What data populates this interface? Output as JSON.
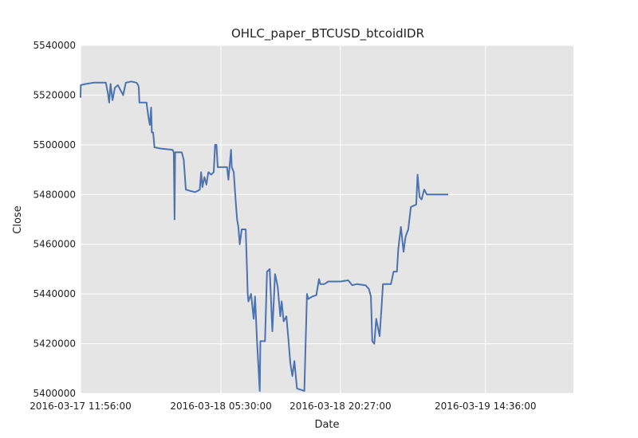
{
  "chart_data": {
    "type": "line",
    "title": "OHLC_paper_BTCUSD_btcoidIDR",
    "xlabel": "Date",
    "ylabel": "Close",
    "ylim": [
      5400000,
      5540000
    ],
    "yticks": [
      "5400000",
      "5420000",
      "5440000",
      "5460000",
      "5480000",
      "5500000",
      "5520000",
      "5540000"
    ],
    "xticks": [
      {
        "label": "2016-03-17 11:56:00",
        "x": 0
      },
      {
        "label": "2016-03-18 05:30:00",
        "x": 1054
      },
      {
        "label": "2016-03-18 20:27:00",
        "x": 1951
      },
      {
        "label": "2016-03-19 14:36:00",
        "x": 3040
      }
    ],
    "x_unit": "minutes since 2016-03-17 11:56:00",
    "xlim": [
      0,
      3700
    ],
    "grid": true,
    "background": "#e5e5e5",
    "line_color": "#4c72b0",
    "series": [
      {
        "name": "Close",
        "points": [
          [
            0,
            5519000
          ],
          [
            2,
            5524000
          ],
          [
            40,
            5524500
          ],
          [
            100,
            5525000
          ],
          [
            190,
            5525000
          ],
          [
            205,
            5521000
          ],
          [
            215,
            5517000
          ],
          [
            225,
            5524500
          ],
          [
            240,
            5518000
          ],
          [
            258,
            5523000
          ],
          [
            280,
            5524000
          ],
          [
            300,
            5522000
          ],
          [
            320,
            5520000
          ],
          [
            340,
            5525000
          ],
          [
            380,
            5525500
          ],
          [
            420,
            5525000
          ],
          [
            432,
            5524000
          ],
          [
            437,
            5523000
          ],
          [
            442,
            5517000
          ],
          [
            465,
            5517000
          ],
          [
            495,
            5517000
          ],
          [
            510,
            5511000
          ],
          [
            520,
            5508000
          ],
          [
            530,
            5515000
          ],
          [
            535,
            5505000
          ],
          [
            545,
            5505000
          ],
          [
            555,
            5499000
          ],
          [
            600,
            5498500
          ],
          [
            690,
            5498000
          ],
          [
            700,
            5497000
          ],
          [
            706,
            5470000
          ],
          [
            710,
            5497000
          ],
          [
            720,
            5497000
          ],
          [
            760,
            5497000
          ],
          [
            775,
            5494000
          ],
          [
            790,
            5482000
          ],
          [
            820,
            5481500
          ],
          [
            860,
            5481000
          ],
          [
            880,
            5481500
          ],
          [
            895,
            5482000
          ],
          [
            905,
            5489000
          ],
          [
            915,
            5483000
          ],
          [
            930,
            5487000
          ],
          [
            945,
            5484000
          ],
          [
            960,
            5489000
          ],
          [
            980,
            5488000
          ],
          [
            1000,
            5489000
          ],
          [
            1010,
            5500000
          ],
          [
            1020,
            5500000
          ],
          [
            1030,
            5491000
          ],
          [
            1100,
            5491000
          ],
          [
            1110,
            5486000
          ],
          [
            1130,
            5498000
          ],
          [
            1135,
            5491000
          ],
          [
            1150,
            5489000
          ],
          [
            1165,
            5477000
          ],
          [
            1175,
            5470000
          ],
          [
            1185,
            5467000
          ],
          [
            1195,
            5460000
          ],
          [
            1210,
            5466000
          ],
          [
            1240,
            5466000
          ],
          [
            1250,
            5449000
          ],
          [
            1255,
            5440000
          ],
          [
            1260,
            5437000
          ],
          [
            1280,
            5440000
          ],
          [
            1300,
            5430000
          ],
          [
            1310,
            5439000
          ],
          [
            1325,
            5421000
          ],
          [
            1345,
            5401000
          ],
          [
            1350,
            5421000
          ],
          [
            1385,
            5421000
          ],
          [
            1400,
            5449000
          ],
          [
            1420,
            5450000
          ],
          [
            1440,
            5425000
          ],
          [
            1460,
            5448000
          ],
          [
            1480,
            5443000
          ],
          [
            1500,
            5431000
          ],
          [
            1510,
            5437000
          ],
          [
            1525,
            5429000
          ],
          [
            1545,
            5431000
          ],
          [
            1560,
            5422000
          ],
          [
            1575,
            5412000
          ],
          [
            1590,
            5407000
          ],
          [
            1605,
            5413000
          ],
          [
            1625,
            5402000
          ],
          [
            1680,
            5401000
          ],
          [
            1700,
            5440000
          ],
          [
            1710,
            5438000
          ],
          [
            1740,
            5439000
          ],
          [
            1770,
            5439500
          ],
          [
            1790,
            5446000
          ],
          [
            1800,
            5444000
          ],
          [
            1830,
            5444000
          ],
          [
            1860,
            5445000
          ],
          [
            1950,
            5445000
          ],
          [
            2010,
            5445500
          ],
          [
            2040,
            5443500
          ],
          [
            2075,
            5444000
          ],
          [
            2140,
            5443500
          ],
          [
            2165,
            5442000
          ],
          [
            2180,
            5439000
          ],
          [
            2190,
            5421000
          ],
          [
            2205,
            5420000
          ],
          [
            2220,
            5430000
          ],
          [
            2245,
            5423000
          ],
          [
            2260,
            5435000
          ],
          [
            2270,
            5444000
          ],
          [
            2330,
            5444000
          ],
          [
            2350,
            5449000
          ],
          [
            2375,
            5449000
          ],
          [
            2385,
            5458000
          ],
          [
            2405,
            5467000
          ],
          [
            2425,
            5457000
          ],
          [
            2440,
            5463000
          ],
          [
            2460,
            5466000
          ],
          [
            2480,
            5475000
          ],
          [
            2520,
            5476000
          ],
          [
            2530,
            5488000
          ],
          [
            2545,
            5479000
          ],
          [
            2560,
            5478000
          ],
          [
            2580,
            5482000
          ],
          [
            2600,
            5480000
          ],
          [
            2700,
            5480000
          ],
          [
            2760,
            5480000
          ]
        ]
      }
    ]
  }
}
